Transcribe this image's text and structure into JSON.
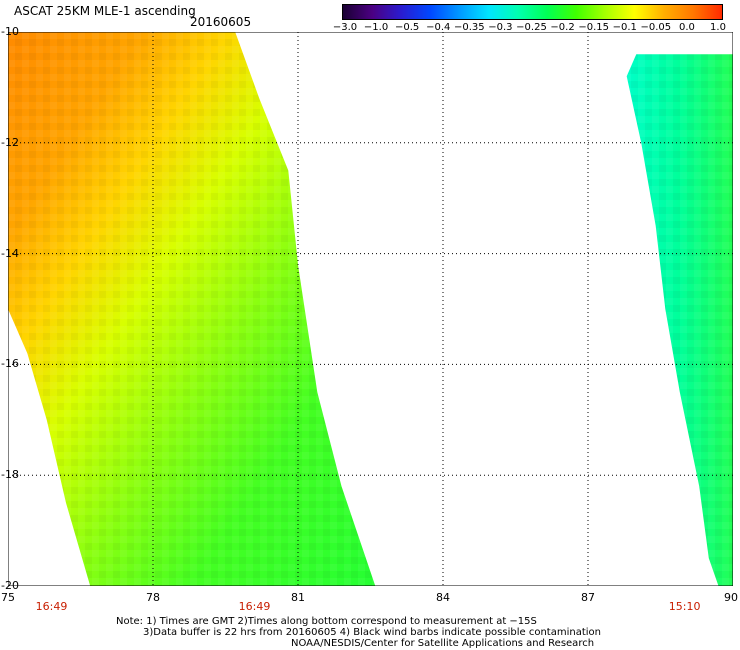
{
  "header": {
    "title": "ASCAT 25KM MLE-1 ascending",
    "date": "20160605"
  },
  "colorbar": {
    "labels": [
      "−3.0",
      "−1.0",
      "−0.5",
      "−0.4",
      "−0.35",
      "−0.3",
      "−0.25",
      "−0.2",
      "−0.15",
      "−0.1",
      "−0.05",
      "0.0",
      "1.0"
    ],
    "colors": [
      "#1a0033",
      "#4b0082",
      "#2a1cd0",
      "#0048ff",
      "#0099ff",
      "#00e5ff",
      "#00ffb0",
      "#00ff55",
      "#40ff00",
      "#a6ff00",
      "#ffff00",
      "#ffb000",
      "#ff7800",
      "#ff2a00"
    ]
  },
  "map": {
    "lon_min": 75,
    "lon_max": 90,
    "lat_min": -20,
    "lat_max": -10,
    "x_ticks": [
      "75",
      "78",
      "81",
      "84",
      "87",
      "90"
    ],
    "y_ticks": [
      "-10",
      "-12",
      "-14",
      "-16",
      "-18",
      "-20"
    ],
    "swaths": [
      {
        "name": "west-swath",
        "outline_lonlat": [
          [
            75,
            -10
          ],
          [
            79.7,
            -10
          ],
          [
            80.2,
            -11.2
          ],
          [
            80.8,
            -12.5
          ],
          [
            81.0,
            -14.2
          ],
          [
            81.4,
            -16.5
          ],
          [
            81.9,
            -18.2
          ],
          [
            82.6,
            -20
          ],
          [
            76.7,
            -20
          ],
          [
            76.2,
            -18.5
          ],
          [
            75.8,
            -17.0
          ],
          [
            75.4,
            -15.8
          ],
          [
            75.0,
            -15.0
          ]
        ],
        "time": "16:49"
      },
      {
        "name": "east-swath",
        "outline_lonlat": [
          [
            88.0,
            -10.4
          ],
          [
            90,
            -10.4
          ],
          [
            90,
            -20
          ],
          [
            89.7,
            -20
          ],
          [
            89.5,
            -19.5
          ],
          [
            89.3,
            -18.2
          ],
          [
            88.9,
            -16.5
          ],
          [
            88.6,
            -15
          ],
          [
            88.4,
            -13.5
          ],
          [
            88.1,
            -12.0
          ],
          [
            87.8,
            -10.8
          ]
        ],
        "time": "15:10"
      }
    ],
    "time_labels": [
      {
        "text": "16:49",
        "lon": 75.9
      },
      {
        "text": "16:49",
        "lon": 80.1
      },
      {
        "text": "15:10",
        "lon": 89.0
      }
    ]
  },
  "footer": {
    "note_line1": "Note: 1) Times are GMT 2)Times along bottom correspond to measurement at −15S",
    "note_line2": "3)Data buffer is 22 hrs from 20160605 4) Black wind barbs indicate possible contamination",
    "note_line3": "NOAA/NESDIS/Center for Satellite Applications and Research"
  }
}
